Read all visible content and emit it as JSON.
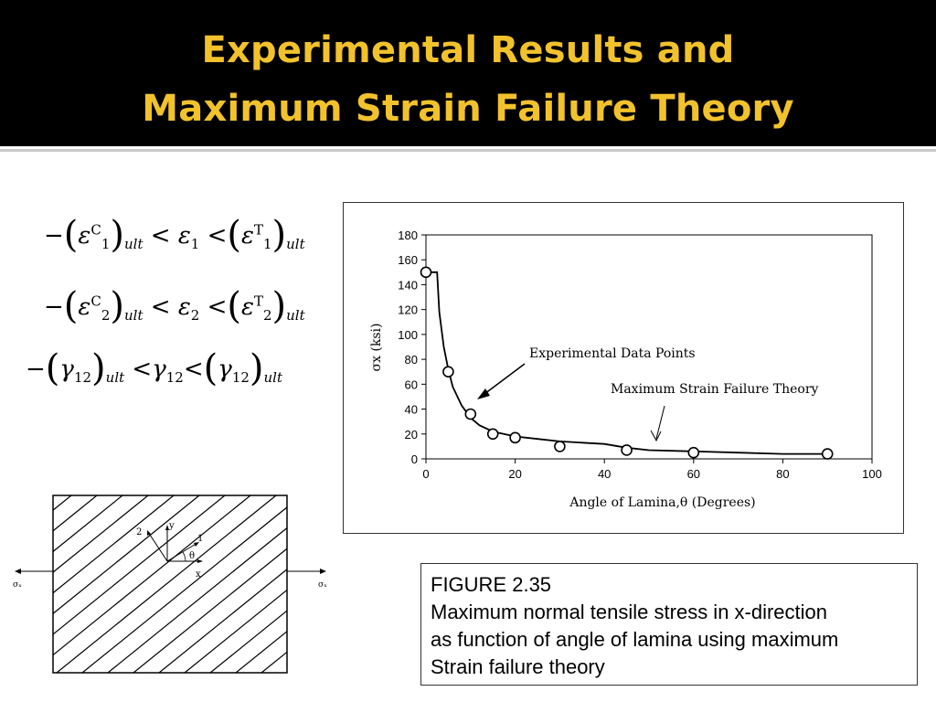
{
  "slide": {
    "title_line1": "Experimental Results and",
    "title_line2": "Maximum Strain Failure Theory"
  },
  "colors": {
    "title": "#f2c22c",
    "header_bg": "#000000"
  },
  "equations": {
    "eps1": {
      "ineq": "<",
      "sub": "1",
      "sup_c": "C",
      "sup_t": "T",
      "ult": "ult"
    },
    "eps2": {
      "ineq": "<",
      "sub": "2",
      "sup_c": "C",
      "sup_t": "T",
      "ult": "ult"
    },
    "gamma12": {
      "ineq": "<",
      "sub": "12",
      "ult": "ult"
    }
  },
  "diagram": {
    "label_y": "y",
    "label_x": "x",
    "label_1": "1",
    "label_2": "2",
    "label_theta": "θ",
    "label_sigma_left": "σₓ",
    "label_sigma_right": "σₓ"
  },
  "caption": {
    "line1": "FIGURE 2.35",
    "line2": "Maximum normal tensile stress in x-direction",
    "line3": "as function of angle of lamina using maximum",
    "line4": "Strain failure theory"
  },
  "chart_data": {
    "type": "scatter",
    "xlabel": "Angle of Lamina,θ (Degrees)",
    "ylabel": "σx (ksi)",
    "xlim": [
      0,
      100
    ],
    "ylim": [
      0,
      180
    ],
    "xticks": [
      0,
      20,
      40,
      60,
      80,
      100
    ],
    "yticks": [
      0,
      20,
      40,
      60,
      80,
      100,
      120,
      140,
      160,
      180
    ],
    "grid": false,
    "annotations": [
      "Experimental Data Points",
      "Maximum Strain Failure  Theory"
    ],
    "series": [
      {
        "kind": "points",
        "x": [
          0,
          5,
          10,
          15,
          20,
          30,
          45,
          60,
          90
        ],
        "y": [
          150,
          70,
          36,
          20,
          17,
          10,
          7,
          5,
          4
        ]
      },
      {
        "kind": "line",
        "x": [
          0,
          2.5,
          3,
          4,
          5,
          6,
          8,
          10,
          12,
          15,
          20,
          25,
          30,
          35,
          40,
          45,
          50,
          60,
          70,
          80,
          90
        ],
        "y": [
          150,
          150,
          118,
          90,
          72,
          58,
          43,
          33,
          27,
          22,
          18,
          16,
          14,
          13,
          12,
          9,
          7,
          6,
          5,
          4,
          4
        ]
      }
    ]
  }
}
